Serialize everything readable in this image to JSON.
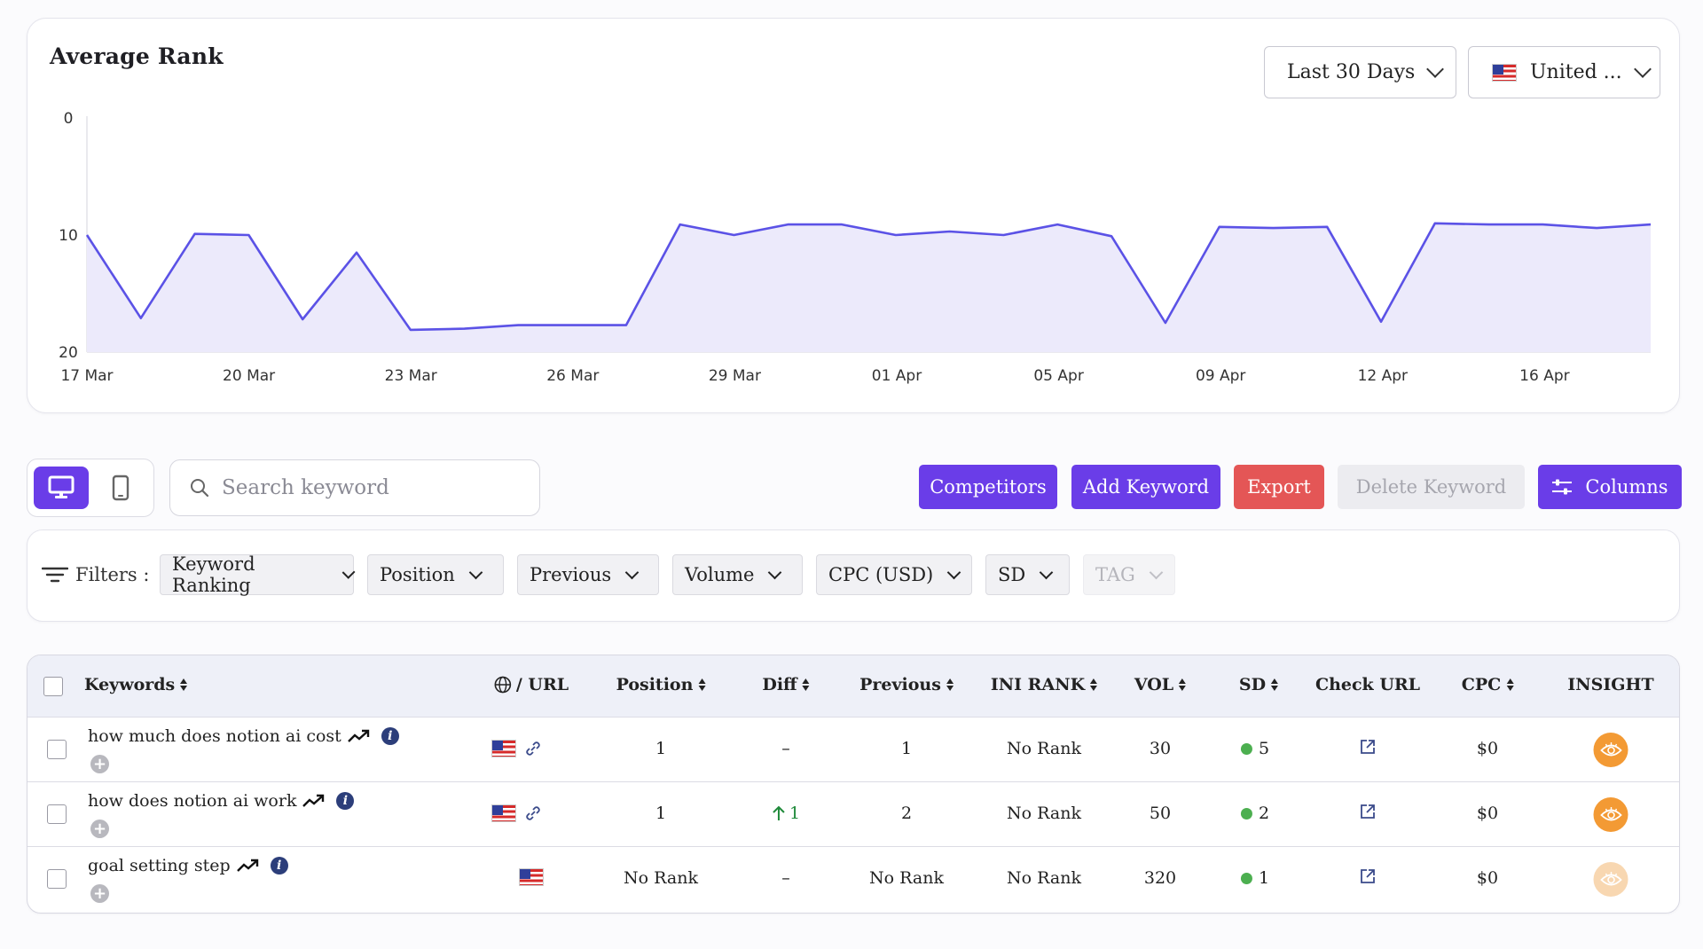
{
  "chart_card": {
    "title": "Average Rank",
    "range_select": "Last 30 Days",
    "country_select": "United ..."
  },
  "chart_data": {
    "type": "area",
    "title": "Average Rank",
    "y_reversed": true,
    "ylim": [
      0,
      20
    ],
    "y_ticks": [
      "0",
      "10",
      "20"
    ],
    "x_ticks": [
      "17 Mar",
      "20 Mar",
      "23 Mar",
      "26 Mar",
      "29 Mar",
      "01 Apr",
      "05 Apr",
      "09 Apr",
      "12 Apr",
      "16 Apr"
    ],
    "values": [
      10,
      17.1,
      9.9,
      10,
      17.2,
      11.5,
      18.1,
      18,
      17.7,
      17.7,
      17.7,
      9.1,
      10,
      9.1,
      9.1,
      10,
      9.7,
      10,
      9.1,
      10.1,
      17.5,
      9.3,
      9.4,
      9.3,
      17.4,
      9.0,
      9.1,
      9.1,
      9.4,
      9.1
    ],
    "grid": false,
    "color": "#5b52e6",
    "fill": "#eceafb"
  },
  "toolbar": {
    "search_placeholder": "Search keyword",
    "competitors": "Competitors",
    "add_keyword": "Add Keyword",
    "export": "Export",
    "delete_keyword": "Delete Keyword",
    "columns": "Columns"
  },
  "filters": {
    "label": "Filters :",
    "items": [
      "Keyword Ranking",
      "Position",
      "Previous",
      "Volume",
      "CPC (USD)",
      "SD",
      "TAG"
    ]
  },
  "table": {
    "headers": {
      "keywords": "Keywords",
      "url": "/ URL",
      "position": "Position",
      "diff": "Diff",
      "previous": "Previous",
      "ini_rank": "INI RANK",
      "vol": "VOL",
      "sd": "SD",
      "check_url": "Check URL",
      "cpc": "CPC",
      "insight": "INSIGHT"
    },
    "rows": [
      {
        "keyword": "how much does notion ai cost",
        "position": "1",
        "diff": "–",
        "previous": "1",
        "ini_rank": "No Rank",
        "vol": "30",
        "sd": "5",
        "cpc": "$0"
      },
      {
        "keyword": "how does notion ai work",
        "position": "1",
        "diff": "1",
        "previous": "2",
        "ini_rank": "No Rank",
        "vol": "50",
        "sd": "2",
        "cpc": "$0"
      },
      {
        "keyword": "goal setting step",
        "position": "No Rank",
        "diff": "–",
        "previous": "No Rank",
        "ini_rank": "No Rank",
        "vol": "320",
        "sd": "1",
        "cpc": "$0"
      }
    ]
  },
  "colors": {
    "accent": "#6a3de8",
    "danger": "#e45656",
    "insight": "#f39a34",
    "sd_good": "#4caf50"
  }
}
